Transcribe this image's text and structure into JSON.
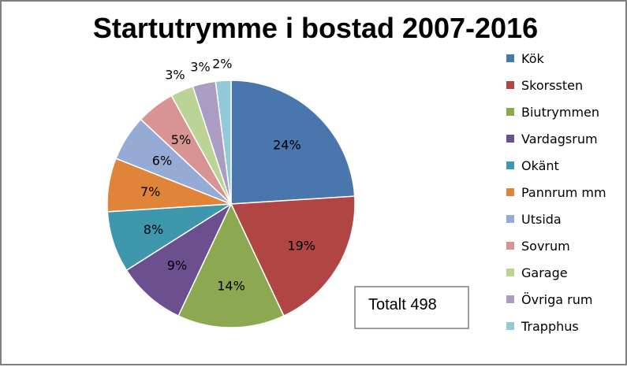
{
  "chart_data": {
    "type": "pie",
    "title": "Startutrymme i bostad 2007-2016",
    "note": "Totalt 498",
    "legend_position": "right",
    "slices": [
      {
        "label": "Kök",
        "value": 24,
        "display": "24%",
        "color": "#4a76ae"
      },
      {
        "label": "Skorssten",
        "value": 19,
        "display": "19%",
        "color": "#b04543"
      },
      {
        "label": "Biutrymmen",
        "value": 14,
        "display": "14%",
        "color": "#8ca850"
      },
      {
        "label": "Vardagsrum",
        "value": 9,
        "display": "9%",
        "color": "#6c4f8f"
      },
      {
        "label": "Okänt",
        "value": 8,
        "display": "8%",
        "color": "#3f97ad"
      },
      {
        "label": "Pannrum mm",
        "value": 7,
        "display": "7%",
        "color": "#e08439"
      },
      {
        "label": "Utsida",
        "value": 6,
        "display": "6%",
        "color": "#95abd6"
      },
      {
        "label": "Sovrum",
        "value": 5,
        "display": "5%",
        "color": "#d89493"
      },
      {
        "label": "Garage",
        "value": 3,
        "display": "3%",
        "color": "#bcd396"
      },
      {
        "label": "Övriga rum",
        "value": 3,
        "display": "3%",
        "color": "#aa9dc1"
      },
      {
        "label": "Trapphus",
        "value": 2,
        "display": "2%",
        "color": "#92c8d8"
      }
    ]
  }
}
